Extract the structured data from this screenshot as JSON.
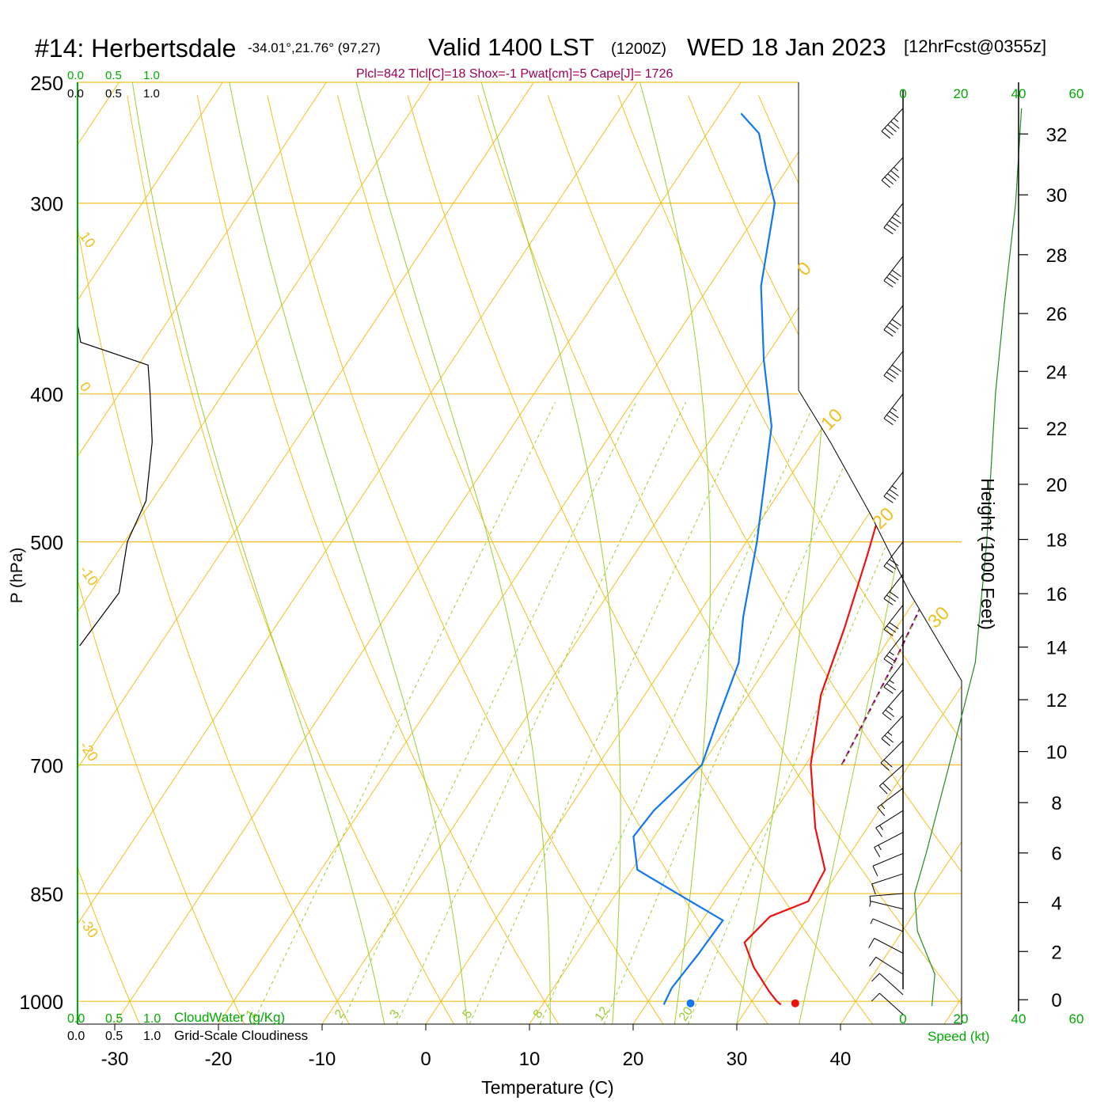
{
  "header": {
    "station": "#14: Herbertsdale",
    "coords": "-34.01°,21.76° (97,27)",
    "valid": "Valid 1400 LST",
    "utc": "(1200Z)",
    "date": "WED 18 Jan 2023",
    "forecast": "[12hrFcst@0355z]",
    "indices": "Plcl=842 Tlcl[C]=18 Shox=-1 Pwat[cm]=5 Cape[J]= 1726"
  },
  "colors": {
    "temperature": "#ee1111",
    "dewpoint": "#1177ee",
    "parcel": "#880066",
    "isobar": "#f0c020",
    "isotherm": "#f0c020",
    "dry_adiabat": "#f0c020",
    "moist_adiabat": "#9acd32",
    "mixing_ratio": "#9acd32",
    "cloud_axis": "#00aa00",
    "wind_profile": "#228b22",
    "indices_text": "#990055"
  },
  "chart_data": {
    "type": "line",
    "title": "#14: Herbertsdale",
    "xlabel": "Temperature (C)",
    "ylabel": "P (hPa)",
    "y2label": "Height (1000 Feet)",
    "xlim": [
      -34,
      46
    ],
    "ylim": [
      1035,
      250
    ],
    "y_scale": "log",
    "x_ticks": [
      "-30",
      "-20",
      "-10",
      "0",
      "10",
      "20",
      "30",
      "40"
    ],
    "pressure_ticks": [
      "250",
      "300",
      "400",
      "500",
      "700",
      "850",
      "1000"
    ],
    "height_ticks": [
      "0",
      "2",
      "4",
      "6",
      "8",
      "10",
      "12",
      "14",
      "16",
      "18",
      "20",
      "22",
      "24",
      "26",
      "28",
      "30",
      "32"
    ],
    "isotherm_labels": [
      "10",
      "0",
      "-10",
      "-20",
      "-30"
    ],
    "right_temp_labels": [
      "0",
      "10",
      "20",
      "30"
    ],
    "mixing_ratio_labels": [
      "1",
      "2",
      "3",
      "5",
      "8",
      "12",
      "20"
    ],
    "cloud_scale": {
      "top_cloudwater": [
        "0.0",
        "0.5",
        "1.0"
      ],
      "top_cloudiness": [
        "0.0",
        "0.5",
        "1.0"
      ],
      "bottom_cloudwater": [
        "0.0",
        "0.5",
        "1.0"
      ],
      "bottom_cloudiness": [
        "0.0",
        "0.5",
        "1.0"
      ],
      "cloudwater_label": "CloudWater (g/Kg)",
      "cloudiness_label": "Grid-Scale Cloudiness"
    },
    "wind_speed": {
      "label": "Speed (kt)",
      "ticks": [
        "0",
        "20",
        "40",
        "60"
      ],
      "profile": [
        [
          1007,
          10
        ],
        [
          960,
          11
        ],
        [
          900,
          5
        ],
        [
          850,
          4
        ],
        [
          800,
          8
        ],
        [
          700,
          16
        ],
        [
          600,
          25
        ],
        [
          500,
          29
        ],
        [
          400,
          32
        ],
        [
          350,
          35
        ],
        [
          300,
          39
        ],
        [
          260,
          41
        ]
      ]
    },
    "series": [
      {
        "name": "Temperature",
        "points": [
          [
            33,
            1005
          ],
          [
            32.4,
            1000
          ],
          [
            31,
            985
          ],
          [
            28,
            950
          ],
          [
            25.5,
            915
          ],
          [
            26.3,
            880
          ],
          [
            29,
            860
          ],
          [
            28.6,
            820
          ],
          [
            25,
            770
          ],
          [
            20.5,
            700
          ],
          [
            17,
            630
          ],
          [
            15,
            570
          ],
          [
            12.5,
            510
          ],
          [
            9.5,
            450
          ],
          [
            6.5,
            400
          ],
          [
            3,
            350
          ],
          [
            -1,
            300
          ],
          [
            -5,
            265
          ]
        ]
      },
      {
        "name": "Dewpoint",
        "points": [
          [
            21.7,
            1005
          ],
          [
            21.4,
            980
          ],
          [
            21.8,
            930
          ],
          [
            22,
            885
          ],
          [
            15,
            845
          ],
          [
            10.5,
            820
          ],
          [
            8,
            780
          ],
          [
            8.3,
            750
          ],
          [
            10,
            700
          ],
          [
            8.5,
            650
          ],
          [
            7,
            600
          ],
          [
            4.5,
            560
          ],
          [
            1,
            500
          ],
          [
            -5,
            420
          ],
          [
            -10,
            380
          ],
          [
            -15,
            340
          ],
          [
            -19,
            300
          ],
          [
            -22,
            285
          ],
          [
            -25,
            270
          ],
          [
            -28,
            262
          ]
        ]
      },
      {
        "name": "Parcel",
        "points": [
          [
            23.5,
            700
          ],
          [
            22,
            600
          ],
          [
            20.5,
            530
          ],
          [
            18.5,
            470
          ],
          [
            16,
            420
          ],
          [
            13,
            380
          ],
          [
            9.5,
            340
          ],
          [
            4.5,
            295
          ],
          [
            0.5,
            265
          ]
        ]
      }
    ],
    "surface_points": [
      {
        "name": "surface-temperature",
        "x": 34.3,
        "p": 1003
      },
      {
        "name": "surface-dewpoint",
        "x": 24.2,
        "p": 1003
      }
    ],
    "cloud_cover_profile": [
      [
        1035,
        0
      ],
      [
        690,
        0
      ],
      [
        585,
        0.02
      ],
      [
        540,
        0.4
      ],
      [
        500,
        0.48
      ],
      [
        470,
        0.66
      ],
      [
        430,
        0.72
      ],
      [
        400,
        0.7
      ],
      [
        383,
        0.68
      ],
      [
        370,
        0.03
      ],
      [
        360,
        0
      ]
    ],
    "wind_barbs": [
      {
        "p": 1020,
        "dir": 315,
        "speed": 10
      },
      {
        "p": 990,
        "dir": 315,
        "speed": 10
      },
      {
        "p": 960,
        "dir": 305,
        "speed": 10
      },
      {
        "p": 930,
        "dir": 300,
        "speed": 10
      },
      {
        "p": 900,
        "dir": 295,
        "speed": 5
      },
      {
        "p": 870,
        "dir": 285,
        "speed": 5
      },
      {
        "p": 850,
        "dir": 265,
        "speed": 5
      },
      {
        "p": 825,
        "dir": 250,
        "speed": 10
      },
      {
        "p": 800,
        "dir": 245,
        "speed": 10
      },
      {
        "p": 775,
        "dir": 240,
        "speed": 15
      },
      {
        "p": 750,
        "dir": 235,
        "speed": 15
      },
      {
        "p": 725,
        "dir": 230,
        "speed": 15
      },
      {
        "p": 700,
        "dir": 225,
        "speed": 20
      },
      {
        "p": 675,
        "dir": 222,
        "speed": 20
      },
      {
        "p": 650,
        "dir": 220,
        "speed": 25
      },
      {
        "p": 625,
        "dir": 218,
        "speed": 25
      },
      {
        "p": 600,
        "dir": 215,
        "speed": 25
      },
      {
        "p": 575,
        "dir": 215,
        "speed": 25
      },
      {
        "p": 550,
        "dir": 215,
        "speed": 30
      },
      {
        "p": 525,
        "dir": 215,
        "speed": 30
      },
      {
        "p": 500,
        "dir": 215,
        "speed": 30
      },
      {
        "p": 450,
        "dir": 215,
        "speed": 35
      },
      {
        "p": 400,
        "dir": 215,
        "speed": 35
      },
      {
        "p": 375,
        "dir": 215,
        "speed": 40
      },
      {
        "p": 350,
        "dir": 215,
        "speed": 40
      },
      {
        "p": 325,
        "dir": 215,
        "speed": 40
      },
      {
        "p": 300,
        "dir": 215,
        "speed": 45
      },
      {
        "p": 280,
        "dir": 220,
        "speed": 45
      },
      {
        "p": 260,
        "dir": 220,
        "speed": 45
      }
    ]
  }
}
